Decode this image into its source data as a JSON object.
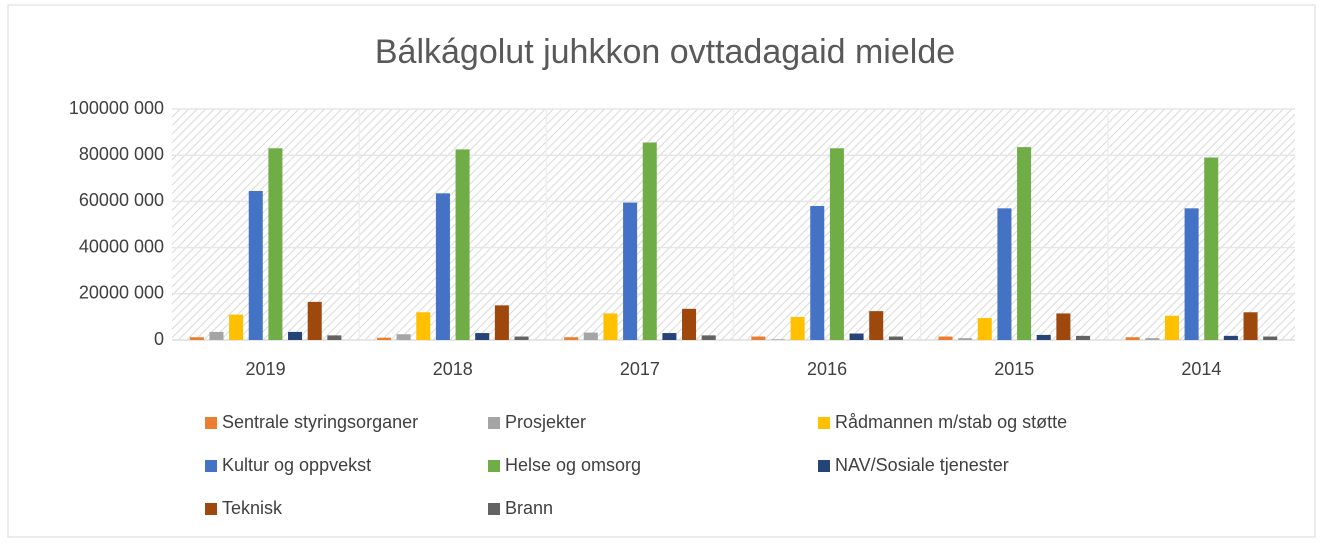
{
  "chart_data": {
    "type": "bar",
    "title": "Bálkágolut juhkkon ovttadagaid mielde",
    "categories": [
      "2019",
      "2018",
      "2017",
      "2016",
      "2015",
      "2014"
    ],
    "series": [
      {
        "name": "Sentrale styringsorganer",
        "color": "#ed7d31",
        "values": [
          1200000,
          1000000,
          1200000,
          1500000,
          1500000,
          1200000
        ]
      },
      {
        "name": "Prosjekter",
        "color": "#a5a5a5",
        "values": [
          3500000,
          2500000,
          3200000,
          300000,
          800000,
          800000
        ]
      },
      {
        "name": "Rådmannen m/stab og støtte",
        "color": "#ffc000",
        "values": [
          11000000,
          12000000,
          11500000,
          10000000,
          9500000,
          10500000
        ]
      },
      {
        "name": "Kultur og oppvekst",
        "color": "#4472c4",
        "values": [
          64500000,
          63500000,
          59500000,
          58000000,
          57000000,
          57000000
        ]
      },
      {
        "name": "Helse og omsorg",
        "color": "#70ad47",
        "values": [
          83000000,
          82500000,
          85500000,
          83000000,
          83500000,
          79000000
        ]
      },
      {
        "name": "NAV/Sosiale tjenester",
        "color": "#264478",
        "values": [
          3500000,
          3000000,
          3000000,
          2800000,
          2200000,
          1800000
        ]
      },
      {
        "name": "Teknisk",
        "color": "#9e480e",
        "values": [
          16500000,
          15000000,
          13500000,
          12500000,
          11500000,
          12000000
        ]
      },
      {
        "name": "Brann",
        "color": "#636363",
        "values": [
          2000000,
          1500000,
          2000000,
          1500000,
          1800000,
          1500000
        ]
      }
    ],
    "ylim": [
      0,
      100000000
    ],
    "yticks": [
      0,
      {
        "value": 20000000,
        "label": "20000 000"
      },
      {
        "value": 40000000,
        "label": "40000 000"
      },
      {
        "value": 60000000,
        "label": "60000 000"
      },
      {
        "value": 80000000,
        "label": "80000 000"
      },
      {
        "value": 100000000,
        "label": "100000 000"
      }
    ],
    "grid": true
  }
}
